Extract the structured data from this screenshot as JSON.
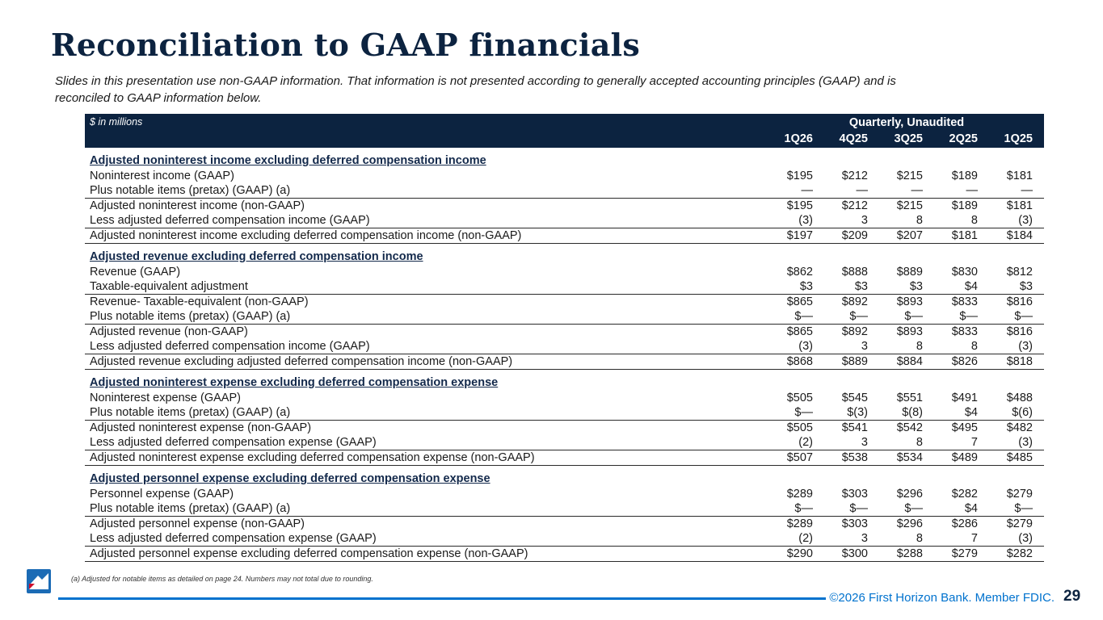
{
  "slide": {
    "title": "Reconciliation to GAAP financials",
    "subtitle": "Slides in this presentation use non-GAAP information. That information is not presented according to generally accepted accounting principles (GAAP) and is\nreconciled to GAAP information below.",
    "footnote": "(a) Adjusted for notable items as detailed on page 24. Numbers may not total due to rounding.",
    "copyright": "©2026 First Horizon Bank. Member FDIC.",
    "page_number": "29"
  },
  "colors": {
    "navy": "#0c2340",
    "accent_blue": "#0072ce",
    "logo_red": "#ce0e2d"
  },
  "table": {
    "units_label": "$ in millions",
    "header_group": "Quarterly, Unaudited",
    "columns": [
      "1Q26",
      "4Q25",
      "3Q25",
      "2Q25",
      "1Q25"
    ],
    "sections": [
      {
        "heading": "Adjusted noninterest income excluding deferred compensation income",
        "rows": [
          {
            "label": "Noninterest income (GAAP)",
            "values": [
              "$195",
              "$212",
              "$215",
              "$189",
              "$181"
            ],
            "rule_below": false
          },
          {
            "label": "Plus notable items (pretax) (GAAP) (a)",
            "values": [
              "—",
              "—",
              "—",
              "—",
              "—"
            ],
            "rule_below": true
          },
          {
            "label": "Adjusted noninterest income (non-GAAP)",
            "values": [
              "$195",
              "$212",
              "$215",
              "$189",
              "$181"
            ],
            "rule_below": false
          },
          {
            "label": "Less adjusted deferred compensation income (GAAP)",
            "values": [
              "(3)",
              "3",
              "8",
              "8",
              "(3)"
            ],
            "rule_below": true
          },
          {
            "label": "Adjusted noninterest income excluding deferred compensation income (non-GAAP)",
            "values": [
              "$197",
              "$209",
              "$207",
              "$181",
              "$184"
            ],
            "rule_below": true
          }
        ]
      },
      {
        "heading": "Adjusted revenue excluding deferred compensation income",
        "rows": [
          {
            "label": "Revenue (GAAP)",
            "values": [
              "$862",
              "$888",
              "$889",
              "$830",
              "$812"
            ],
            "rule_below": false
          },
          {
            "label": "Taxable-equivalent adjustment",
            "values": [
              "$3",
              "$3",
              "$3",
              "$4",
              "$3"
            ],
            "rule_below": true
          },
          {
            "label": "Revenue- Taxable-equivalent (non-GAAP)",
            "values": [
              "$865",
              "$892",
              "$893",
              "$833",
              "$816"
            ],
            "rule_below": false
          },
          {
            "label": "Plus notable items (pretax) (GAAP) (a)",
            "values": [
              "$—",
              "$—",
              "$—",
              "$—",
              "$—"
            ],
            "rule_below": true
          },
          {
            "label": "Adjusted revenue (non-GAAP)",
            "values": [
              "$865",
              "$892",
              "$893",
              "$833",
              "$816"
            ],
            "rule_below": false
          },
          {
            "label": "Less adjusted deferred compensation income (GAAP)",
            "values": [
              "(3)",
              "3",
              "8",
              "8",
              "(3)"
            ],
            "rule_below": true
          },
          {
            "label": "Adjusted revenue excluding adjusted deferred compensation income (non-GAAP)",
            "values": [
              "$868",
              "$889",
              "$884",
              "$826",
              "$818"
            ],
            "rule_below": true
          }
        ]
      },
      {
        "heading": "Adjusted noninterest expense excluding deferred compensation expense",
        "rows": [
          {
            "label": "Noninterest expense (GAAP)",
            "values": [
              "$505",
              "$545",
              "$551",
              "$491",
              "$488"
            ],
            "rule_below": false
          },
          {
            "label": "Plus notable items (pretax) (GAAP) (a)",
            "values": [
              "$—",
              "$(3)",
              "$(8)",
              "$4",
              "$(6)"
            ],
            "rule_below": true
          },
          {
            "label": "Adjusted noninterest expense (non-GAAP)",
            "values": [
              "$505",
              "$541",
              "$542",
              "$495",
              "$482"
            ],
            "rule_below": false
          },
          {
            "label": "Less adjusted deferred compensation expense (GAAP)",
            "values": [
              "(2)",
              "3",
              "8",
              "7",
              "(3)"
            ],
            "rule_below": true
          },
          {
            "label": "Adjusted noninterest expense excluding deferred compensation expense (non-GAAP)",
            "values": [
              "$507",
              "$538",
              "$534",
              "$489",
              "$485"
            ],
            "rule_below": true
          }
        ]
      },
      {
        "heading": "Adjusted personnel expense excluding deferred compensation expense",
        "rows": [
          {
            "label": "Personnel expense (GAAP)",
            "values": [
              "$289",
              "$303",
              "$296",
              "$282",
              "$279"
            ],
            "rule_below": false
          },
          {
            "label": "Plus notable items (pretax) (GAAP) (a)",
            "values": [
              "$—",
              "$—",
              "$—",
              "$4",
              "$—"
            ],
            "rule_below": true
          },
          {
            "label": "Adjusted personnel expense (non-GAAP)",
            "values": [
              "$289",
              "$303",
              "$296",
              "$286",
              "$279"
            ],
            "rule_below": false
          },
          {
            "label": "Less adjusted deferred compensation expense (GAAP)",
            "values": [
              "(2)",
              "3",
              "8",
              "7",
              "(3)"
            ],
            "rule_below": true
          },
          {
            "label": "Adjusted personnel expense excluding deferred compensation expense (non-GAAP)",
            "values": [
              "$290",
              "$300",
              "$288",
              "$279",
              "$282"
            ],
            "rule_below": true
          }
        ]
      }
    ]
  }
}
